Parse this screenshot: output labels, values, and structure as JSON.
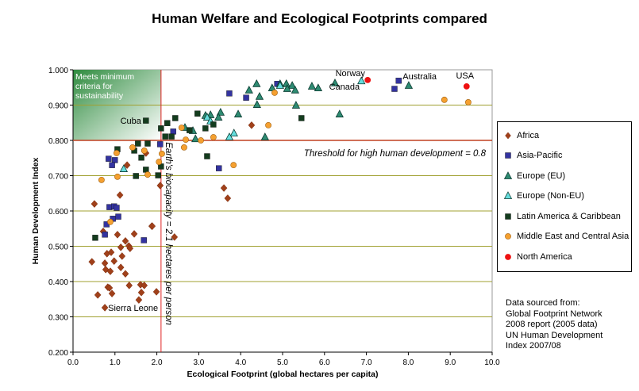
{
  "chart_data": {
    "type": "scatter",
    "title": "Human Welfare and Ecological Footprints compared",
    "xlabel": "Ecological Footprint (global hectares per capita)",
    "ylabel": "Human Development Index",
    "xlim": [
      0,
      10
    ],
    "ylim": [
      0.2,
      1.0
    ],
    "xticks": [
      "0.0",
      "1.0",
      "2.0",
      "3.0",
      "4.0",
      "5.0",
      "6.0",
      "7.0",
      "8.0",
      "9.0",
      "10.0"
    ],
    "yticks": [
      "0.200",
      "0.300",
      "0.400",
      "0.500",
      "0.600",
      "0.700",
      "0.800",
      "0.900",
      "1.000"
    ],
    "grid": "horizontal",
    "legend_position": "right",
    "series": [
      {
        "name": "Africa",
        "marker": "diamond",
        "color": "#a0401a",
        "points": [
          [
            1.29,
            0.73
          ],
          [
            1.74,
            0.764
          ],
          [
            2.08,
            0.672
          ],
          [
            1.12,
            0.645
          ],
          [
            0.51,
            0.62
          ],
          [
            1.88,
            0.557
          ],
          [
            0.72,
            0.542
          ],
          [
            1.06,
            0.533
          ],
          [
            1.46,
            0.535
          ],
          [
            2.42,
            0.526
          ],
          [
            1.25,
            0.515
          ],
          [
            1.14,
            0.497
          ],
          [
            1.33,
            0.501
          ],
          [
            1.36,
            0.494
          ],
          [
            0.81,
            0.479
          ],
          [
            0.91,
            0.483
          ],
          [
            1.17,
            0.472
          ],
          [
            0.45,
            0.456
          ],
          [
            0.76,
            0.452
          ],
          [
            0.98,
            0.458
          ],
          [
            0.78,
            0.434
          ],
          [
            0.89,
            0.429
          ],
          [
            1.14,
            0.44
          ],
          [
            1.25,
            0.422
          ],
          [
            1.34,
            0.389
          ],
          [
            1.61,
            0.391
          ],
          [
            1.7,
            0.389
          ],
          [
            0.83,
            0.384
          ],
          [
            0.87,
            0.382
          ],
          [
            0.59,
            0.362
          ],
          [
            0.93,
            0.366
          ],
          [
            1.63,
            0.369
          ],
          [
            1.99,
            0.371
          ],
          [
            1.57,
            0.348
          ],
          [
            0.76,
            0.326
          ],
          [
            4.26,
            0.843
          ],
          [
            3.6,
            0.665
          ],
          [
            3.69,
            0.636
          ],
          [
            1.89,
            0.557
          ]
        ]
      },
      {
        "name": "Asia-Pacific",
        "marker": "square",
        "color": "#3333a0",
        "points": [
          [
            0.85,
            0.748
          ],
          [
            1.0,
            0.744
          ],
          [
            0.93,
            0.73
          ],
          [
            2.08,
            0.789
          ],
          [
            2.39,
            0.825
          ],
          [
            0.87,
            0.611
          ],
          [
            0.98,
            0.613
          ],
          [
            1.04,
            0.609
          ],
          [
            0.95,
            0.578
          ],
          [
            1.08,
            0.584
          ],
          [
            0.8,
            0.562
          ],
          [
            0.76,
            0.533
          ],
          [
            1.69,
            0.517
          ],
          [
            3.73,
            0.933
          ],
          [
            4.13,
            0.921
          ],
          [
            4.87,
            0.96
          ],
          [
            3.48,
            0.721
          ],
          [
            7.77,
            0.969
          ],
          [
            7.67,
            0.946
          ]
        ]
      },
      {
        "name": "Europe (EU)",
        "marker": "triangle",
        "color": "#2e8b72",
        "points": [
          [
            4.38,
            0.96
          ],
          [
            4.2,
            0.942
          ],
          [
            4.45,
            0.924
          ],
          [
            4.39,
            0.901
          ],
          [
            4.75,
            0.948
          ],
          [
            4.94,
            0.96
          ],
          [
            5.09,
            0.96
          ],
          [
            5.23,
            0.955
          ],
          [
            5.11,
            0.946
          ],
          [
            5.3,
            0.942
          ],
          [
            5.7,
            0.953
          ],
          [
            5.85,
            0.948
          ],
          [
            6.25,
            0.962
          ],
          [
            5.32,
            0.899
          ],
          [
            6.36,
            0.874
          ],
          [
            3.94,
            0.874
          ],
          [
            3.52,
            0.879
          ],
          [
            3.47,
            0.865
          ],
          [
            3.16,
            0.87
          ],
          [
            3.28,
            0.872
          ],
          [
            2.67,
            0.836
          ],
          [
            2.86,
            0.827
          ],
          [
            2.92,
            0.804
          ],
          [
            4.58,
            0.809
          ],
          [
            8.01,
            0.955
          ]
        ]
      },
      {
        "name": "Europe (Non-EU)",
        "marker": "triangle",
        "color": "#66dddd",
        "points": [
          [
            3.84,
            0.82
          ],
          [
            3.73,
            0.809
          ],
          [
            3.2,
            0.865
          ],
          [
            1.21,
            0.719
          ],
          [
            6.88,
            0.968
          ],
          [
            4.94,
            0.955
          ],
          [
            3.28,
            0.854
          ]
        ]
      },
      {
        "name": "Latin America & Caribbean",
        "marker": "square",
        "color": "#143c1e",
        "points": [
          [
            1.74,
            0.856
          ],
          [
            2.25,
            0.849
          ],
          [
            2.44,
            0.863
          ],
          [
            2.97,
            0.876
          ],
          [
            2.1,
            0.834
          ],
          [
            2.2,
            0.811
          ],
          [
            2.35,
            0.811
          ],
          [
            1.55,
            0.791
          ],
          [
            1.78,
            0.791
          ],
          [
            1.06,
            0.775
          ],
          [
            1.46,
            0.771
          ],
          [
            1.63,
            0.751
          ],
          [
            1.74,
            0.717
          ],
          [
            1.5,
            0.699
          ],
          [
            2.03,
            0.701
          ],
          [
            2.1,
            0.726
          ],
          [
            3.2,
            0.755
          ],
          [
            0.53,
            0.524
          ],
          [
            2.78,
            0.829
          ],
          [
            3.16,
            0.834
          ],
          [
            3.35,
            0.845
          ],
          [
            5.45,
            0.863
          ]
        ]
      },
      {
        "name": "Middle East and Central Asia",
        "marker": "circle",
        "color": "#f5a030",
        "points": [
          [
            0.68,
            0.688
          ],
          [
            1.06,
            0.697
          ],
          [
            1.04,
            0.764
          ],
          [
            1.42,
            0.78
          ],
          [
            1.7,
            0.771
          ],
          [
            2.05,
            0.739
          ],
          [
            2.12,
            0.762
          ],
          [
            1.78,
            0.703
          ],
          [
            0.89,
            0.569
          ],
          [
            2.59,
            0.836
          ],
          [
            2.69,
            0.802
          ],
          [
            2.65,
            0.78
          ],
          [
            3.05,
            0.8
          ],
          [
            3.35,
            0.809
          ],
          [
            4.66,
            0.843
          ],
          [
            4.81,
            0.935
          ],
          [
            3.83,
            0.73
          ],
          [
            8.86,
            0.915
          ],
          [
            9.43,
            0.908
          ]
        ]
      },
      {
        "name": "North America",
        "marker": "circle",
        "color": "#ee1111",
        "points": [
          [
            7.03,
            0.971
          ],
          [
            9.39,
            0.953
          ]
        ]
      }
    ],
    "point_labels": [
      {
        "text": "Norway",
        "x": 6.88,
        "y": 0.968
      },
      {
        "text": "Canada",
        "x": 7.03,
        "y": 0.971
      },
      {
        "text": "Australia",
        "x": 7.77,
        "y": 0.969
      },
      {
        "text": "USA",
        "x": 9.39,
        "y": 0.953
      },
      {
        "text": "Cuba",
        "x": 1.74,
        "y": 0.856
      },
      {
        "text": "Sierra Leone",
        "x": 0.76,
        "y": 0.326
      }
    ],
    "reference_lines": {
      "hdi_threshold": 0.8,
      "biocapacity": 2.1
    },
    "annotations": {
      "sustainability": [
        "Meets minimum",
        "criteria for",
        "sustainability"
      ],
      "threshold": "Threshold for high human development = 0.8",
      "biocapacity": "Earth's biocapacity = 2.1 hectares per person"
    },
    "source": [
      "Data sourced from:",
      "Global Footprint Network",
      "2008 report (2005 data)",
      "UN Human Development",
      "Index 2007/08"
    ]
  }
}
